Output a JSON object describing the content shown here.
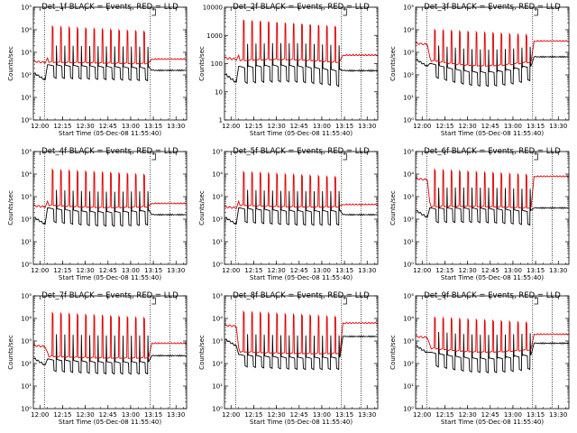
{
  "colors": {
    "events": "#000000",
    "lld": "#e00000",
    "axis": "#000000",
    "background": "#ffffff"
  },
  "chart_data": [
    {
      "type": "line",
      "title": "Det_1f BLACK = Events, RED = LLD",
      "xlabel": "Start Time (05-Dec-08 11:55:40)",
      "ylabel": "Counts/sec",
      "y_scale": "log",
      "ylim_exp": [
        0,
        5
      ],
      "y_tick_labels": [
        "10⁰",
        "10¹",
        "10²",
        "10³",
        "10⁴",
        "10⁵"
      ],
      "x_tick_labels": [
        "12:00",
        "12:15",
        "12:30",
        "12:45",
        "13:00",
        "13:15",
        "13:30"
      ],
      "xlim": [
        "11:55:40",
        "13:37"
      ],
      "n_pulses": 12,
      "event_base_exp": 2.1,
      "event_peak_exp": 2.45,
      "event_pulse_exp": 3.3,
      "lld_base_exp": 2.55,
      "lld_peak_exp": 4.15,
      "lld_tail_exp": 2.7,
      "event_tail_exp": 2.2,
      "slope": 0.0
    },
    {
      "type": "line",
      "title": "Det_2f BLACK = Events, RED = LLD",
      "xlabel": "Start Time (05-Dec-08 11:55:40)",
      "ylabel": "Counts/sec",
      "y_scale": "log",
      "ylim_exp": [
        0,
        4
      ],
      "y_tick_labels": [
        "1",
        "10",
        "100",
        "1000",
        "10000"
      ],
      "x_tick_labels": [
        "12:00",
        "12:15",
        "12:30",
        "12:45",
        "13:00",
        "13:15",
        "13:30"
      ],
      "xlim": [
        "11:55:40",
        "13:37"
      ],
      "n_pulses": 12,
      "event_base_exp": 1.55,
      "event_peak_exp": 1.9,
      "event_pulse_exp": 2.7,
      "lld_base_exp": 2.1,
      "lld_peak_exp": 3.55,
      "lld_tail_exp": 2.3,
      "event_tail_exp": 1.75,
      "slope": 0.1
    },
    {
      "type": "line",
      "title": "Det_3f BLACK = Events, RED = LLD",
      "xlabel": "Start Time (05-Dec-08 11:55:40)",
      "ylabel": "Counts/sec",
      "y_scale": "log",
      "ylim_exp": [
        0,
        5
      ],
      "y_tick_labels": [
        "10⁰",
        "10¹",
        "10²",
        "10³",
        "10⁴",
        "10⁵"
      ],
      "x_tick_labels": [
        "12:00",
        "12:15",
        "12:30",
        "12:45",
        "13:00",
        "13:15",
        "13:30"
      ],
      "xlim": [
        "11:55:40",
        "13:37"
      ],
      "n_pulses": 12,
      "event_base_exp": 2.1,
      "event_peak_exp": 2.5,
      "event_pulse_exp": 3.3,
      "lld_base_exp": 2.6,
      "lld_peak_exp": 4.0,
      "lld_tail_exp": 3.5,
      "event_tail_exp": 2.8,
      "slope": -0.3
    },
    {
      "type": "line",
      "title": "Det_4f BLACK = Events, RED = LLD",
      "xlabel": "Start Time (05-Dec-08 11:55:40)",
      "ylabel": "Counts/sec",
      "y_scale": "log",
      "ylim_exp": [
        0,
        5
      ],
      "y_tick_labels": [
        "10⁰",
        "10¹",
        "10²",
        "10³",
        "10⁴",
        "10⁵"
      ],
      "x_tick_labels": [
        "12:00",
        "12:15",
        "12:30",
        "12:45",
        "13:00",
        "13:15",
        "13:30"
      ],
      "xlim": [
        "11:55:40",
        "13:37"
      ],
      "n_pulses": 12,
      "event_base_exp": 2.1,
      "event_peak_exp": 2.5,
      "event_pulse_exp": 3.3,
      "lld_base_exp": 2.6,
      "lld_peak_exp": 4.2,
      "lld_tail_exp": 2.7,
      "event_tail_exp": 2.2,
      "slope": -0.1
    },
    {
      "type": "line",
      "title": "Det_5f BLACK = Events, RED = LLD",
      "xlabel": "Start Time (05-Dec-08 11:55:40)",
      "ylabel": "Counts/sec",
      "y_scale": "log",
      "ylim_exp": [
        0,
        5
      ],
      "y_tick_labels": [
        "10⁰",
        "10¹",
        "10²",
        "10³",
        "10⁴",
        "10⁵"
      ],
      "x_tick_labels": [
        "12:00",
        "12:15",
        "12:30",
        "12:45",
        "13:00",
        "13:15",
        "13:30"
      ],
      "xlim": [
        "11:55:40",
        "13:37"
      ],
      "n_pulses": 12,
      "event_base_exp": 2.1,
      "event_peak_exp": 2.5,
      "event_pulse_exp": 3.3,
      "lld_base_exp": 2.6,
      "lld_peak_exp": 4.1,
      "lld_tail_exp": 2.65,
      "event_tail_exp": 2.2,
      "slope": -0.05
    },
    {
      "type": "line",
      "title": "Det_6f BLACK = Events, RED = LLD",
      "xlabel": "Start Time (05-Dec-08 11:55:40)",
      "ylabel": "Counts/sec",
      "y_scale": "log",
      "ylim_exp": [
        0,
        5
      ],
      "y_tick_labels": [
        "10⁰",
        "10¹",
        "10²",
        "10³",
        "10⁴",
        "10⁵"
      ],
      "x_tick_labels": [
        "12:00",
        "12:15",
        "12:30",
        "12:45",
        "13:00",
        "13:15",
        "13:30"
      ],
      "xlim": [
        "11:55:40",
        "13:37"
      ],
      "n_pulses": 12,
      "event_base_exp": 2.1,
      "event_peak_exp": 2.5,
      "event_pulse_exp": 3.4,
      "lld_base_exp": 2.55,
      "lld_peak_exp": 4.2,
      "lld_tail_exp": 3.9,
      "event_tail_exp": 2.5,
      "slope": 0.05
    },
    {
      "type": "line",
      "title": "Det_7f BLACK = Events, RED = LLD",
      "xlabel": "Start Time (05-Dec-08 11:55:40)",
      "ylabel": "Counts/sec",
      "y_scale": "log",
      "ylim_exp": [
        0,
        5
      ],
      "y_tick_labels": [
        "10⁰",
        "10¹",
        "10²",
        "10³",
        "10⁴",
        "10⁵"
      ],
      "x_tick_labels": [
        "12:00",
        "12:15",
        "12:30",
        "12:45",
        "13:00",
        "13:15",
        "13:30"
      ],
      "xlim": [
        "11:55:40",
        "13:37"
      ],
      "n_pulses": 12,
      "event_base_exp": 1.9,
      "event_peak_exp": 2.2,
      "event_pulse_exp": 3.3,
      "lld_base_exp": 2.3,
      "lld_peak_exp": 4.25,
      "lld_tail_exp": 2.9,
      "event_tail_exp": 2.35,
      "slope": -0.05
    },
    {
      "type": "line",
      "title": "Det_8f BLACK = Events, RED = LLD",
      "xlabel": "Start Time (05-Dec-08 11:55:40)",
      "ylabel": "Counts/sec",
      "y_scale": "log",
      "ylim_exp": [
        0,
        5
      ],
      "y_tick_labels": [
        "10⁰",
        "10¹",
        "10²",
        "10³",
        "10⁴",
        "10⁵"
      ],
      "x_tick_labels": [
        "12:00",
        "12:15",
        "12:30",
        "12:45",
        "13:00",
        "13:15",
        "13:30"
      ],
      "xlim": [
        "11:55:40",
        "13:37"
      ],
      "n_pulses": 12,
      "event_base_exp": 2.1,
      "event_peak_exp": 2.4,
      "event_pulse_exp": 3.3,
      "lld_base_exp": 2.5,
      "lld_peak_exp": 4.3,
      "lld_tail_exp": 3.8,
      "event_tail_exp": 3.2,
      "slope": -0.05
    },
    {
      "type": "line",
      "title": "Det_9f BLACK = Events, RED = LLD",
      "xlabel": "Start Time (05-Dec-08 11:55:40)",
      "ylabel": "Counts/sec",
      "y_scale": "log",
      "ylim_exp": [
        0,
        5
      ],
      "y_tick_labels": [
        "10⁰",
        "10¹",
        "10²",
        "10³",
        "10⁴",
        "10⁵"
      ],
      "x_tick_labels": [
        "12:00",
        "12:15",
        "12:30",
        "12:45",
        "13:00",
        "13:15",
        "13:30"
      ],
      "xlim": [
        "11:55:40",
        "13:37"
      ],
      "n_pulses": 12,
      "event_base_exp": 2.1,
      "event_peak_exp": 2.5,
      "event_pulse_exp": 3.4,
      "lld_base_exp": 2.65,
      "lld_peak_exp": 4.05,
      "lld_tail_exp": 3.3,
      "event_tail_exp": 2.9,
      "slope": -0.2
    }
  ]
}
